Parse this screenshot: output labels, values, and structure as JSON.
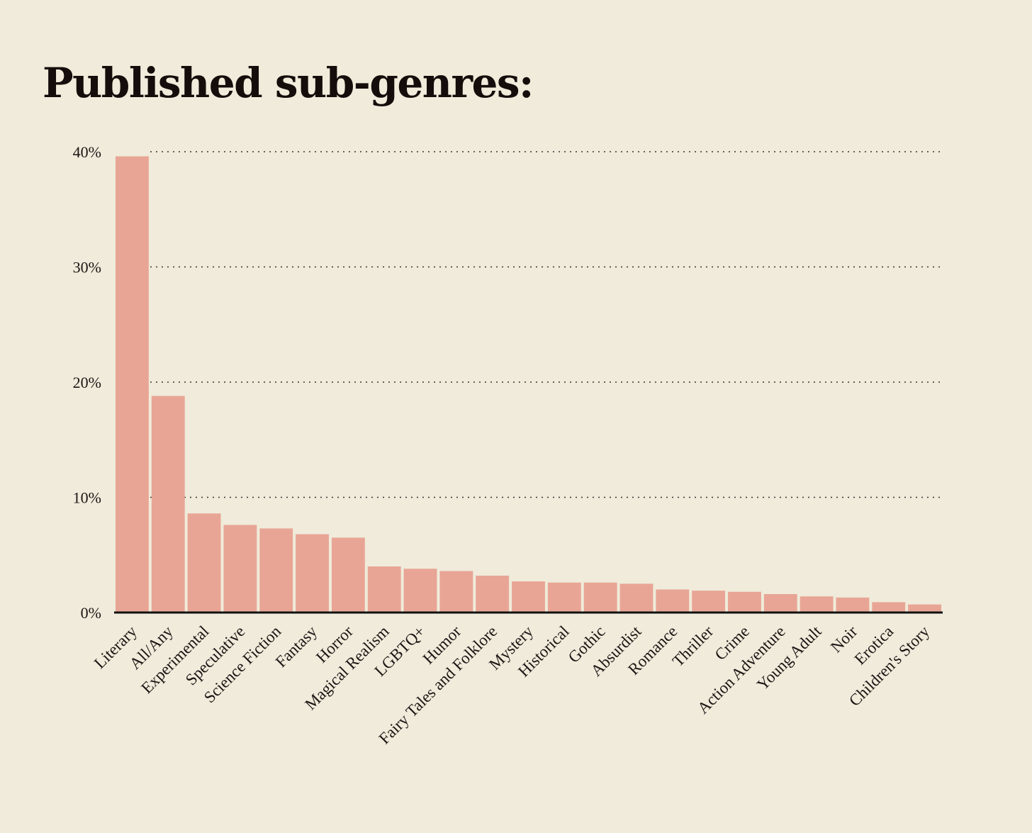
{
  "chart_data": {
    "type": "bar",
    "title": "Published sub-genres:",
    "categories": [
      "Literary",
      "All/Any",
      "Experimental",
      "Speculative",
      "Science Fiction",
      "Fantasy",
      "Horror",
      "Magical Realism",
      "LGBTQ+",
      "Humor",
      "Fairy Tales and Folklore",
      "Mystery",
      "Historical",
      "Gothic",
      "Absurdist",
      "Romance",
      "Thriller",
      "Crime",
      "Action Adventure",
      "Young Adult",
      "Noir",
      "Erotica",
      "Children's Story"
    ],
    "values": [
      39.6,
      18.8,
      8.6,
      7.6,
      7.3,
      6.8,
      6.5,
      4.0,
      3.8,
      3.6,
      3.2,
      2.7,
      2.6,
      2.6,
      2.5,
      2.0,
      1.9,
      1.8,
      1.6,
      1.4,
      1.3,
      0.9,
      0.7
    ],
    "y_ticks": [
      "0%",
      "10%",
      "20%",
      "30%",
      "40%"
    ],
    "ylim": [
      0,
      40
    ],
    "grid": true,
    "colors": {
      "bar": "#e8a595",
      "background": "#f0ebda",
      "text": "#141010"
    }
  }
}
